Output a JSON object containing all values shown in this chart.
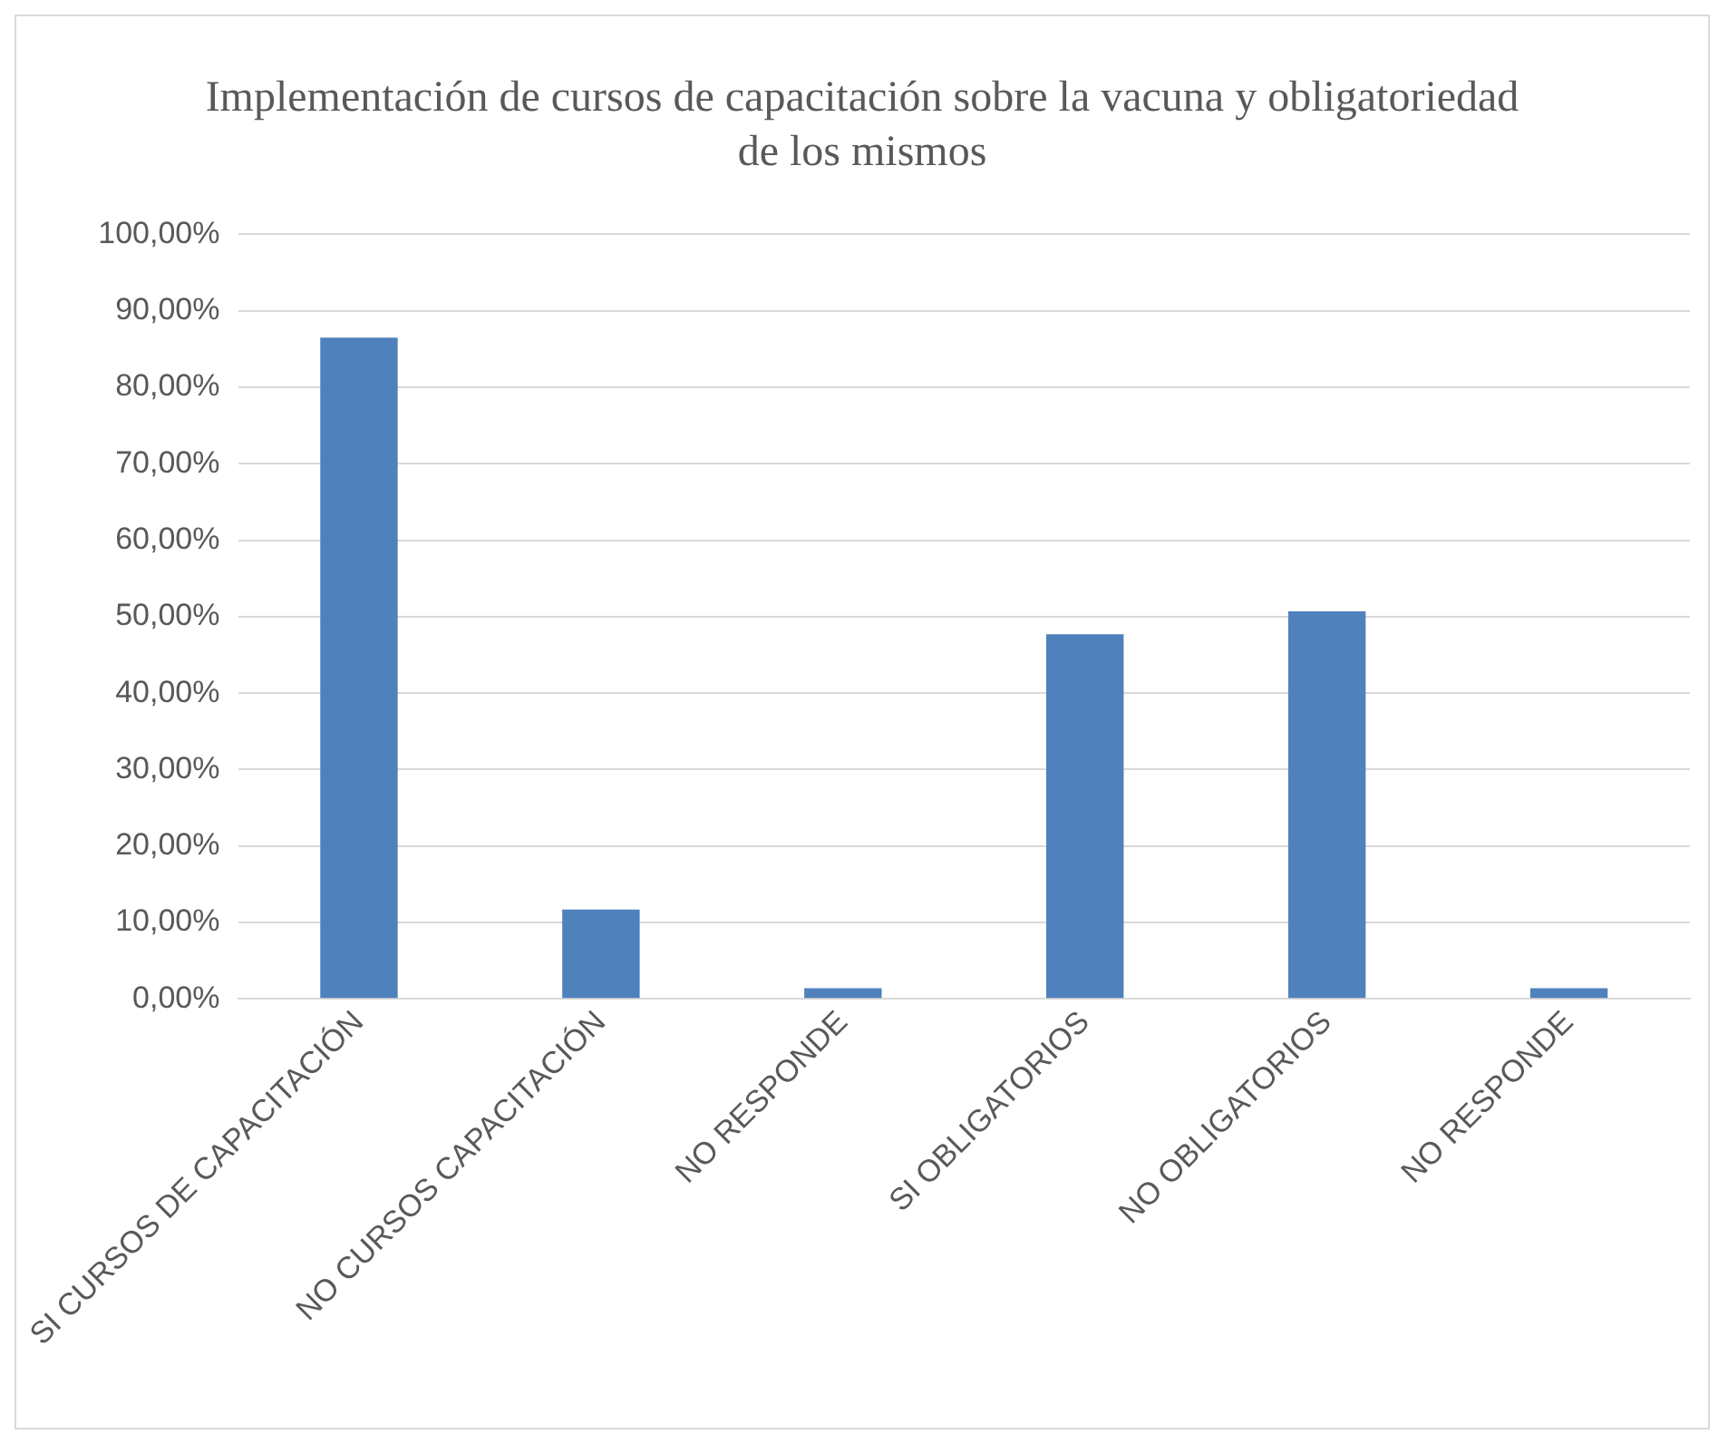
{
  "chart_data": {
    "type": "bar",
    "title": "Implementación de cursos de capacitación sobre la vacuna y obligatoriedad de los mismos",
    "categories": [
      "SI CURSOS DE CAPACITACIÓN",
      "NO CURSOS CAPACITACIÓN",
      "NO RESPONDE",
      "SI OBLIGATORIOS",
      "NO OBLIGATORIOS",
      "NO RESPONDE"
    ],
    "values": [
      86.5,
      11.7,
      1.4,
      47.7,
      50.7,
      1.4
    ],
    "color": "#4f81bd",
    "ylim": [
      0,
      100
    ],
    "yticks": [
      {
        "value": 0,
        "label": "0,00%"
      },
      {
        "value": 10,
        "label": "10,00%"
      },
      {
        "value": 20,
        "label": "20,00%"
      },
      {
        "value": 30,
        "label": "30,00%"
      },
      {
        "value": 40,
        "label": "40,00%"
      },
      {
        "value": 50,
        "label": "50,00%"
      },
      {
        "value": 60,
        "label": "60,00%"
      },
      {
        "value": 70,
        "label": "70,00%"
      },
      {
        "value": 80,
        "label": "80,00%"
      },
      {
        "value": 90,
        "label": "90,00%"
      },
      {
        "value": 100,
        "label": "100,00%"
      }
    ],
    "grid": "y"
  }
}
